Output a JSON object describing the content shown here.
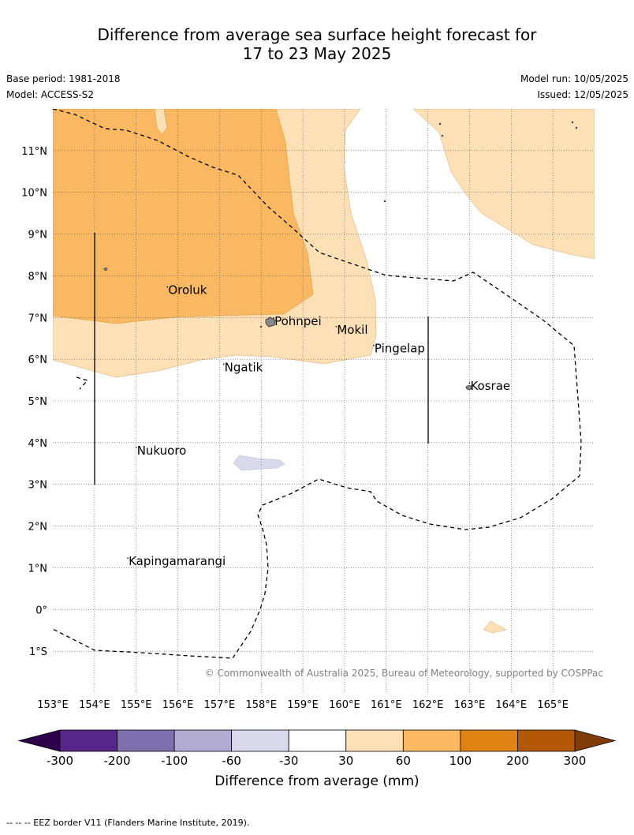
{
  "title_line1": "Difference from average sea surface height forecast for",
  "title_line2": "17 to 23 May 2025",
  "base_period": "Base period: 1981-2018",
  "model": "Model: ACCESS-S2",
  "model_run": "Model run: 10/05/2025",
  "issued": "Issued: 12/05/2025",
  "map": {
    "lon_range": [
      153,
      166
    ],
    "lat_range": [
      -2,
      12
    ],
    "lon_ticks": [
      "153°E",
      "154°E",
      "155°E",
      "156°E",
      "157°E",
      "158°E",
      "159°E",
      "160°E",
      "161°E",
      "162°E",
      "163°E",
      "164°E",
      "165°E"
    ],
    "lat_ticks": [
      "11°N",
      "10°N",
      "9°N",
      "8°N",
      "7°N",
      "6°N",
      "5°N",
      "4°N",
      "3°N",
      "2°N",
      "1°N",
      "0°",
      "1°S"
    ],
    "places": [
      {
        "name": "Oroluk",
        "lon": 155.75,
        "lat": 7.6
      },
      {
        "name": "Pohnpei",
        "lon": 158.3,
        "lat": 6.85
      },
      {
        "name": "Mokil",
        "lon": 159.8,
        "lat": 6.65
      },
      {
        "name": "Pingelap",
        "lon": 160.7,
        "lat": 6.2
      },
      {
        "name": "Ngatik",
        "lon": 157.1,
        "lat": 5.75
      },
      {
        "name": "Kosrae",
        "lon": 163.0,
        "lat": 5.3
      },
      {
        "name": "Nukuoro",
        "lon": 155.0,
        "lat": 3.75
      },
      {
        "name": "Kapingamarangi",
        "lon": 154.8,
        "lat": 1.1
      }
    ],
    "copyright": "© Commonwealth of Australia 2025, Bureau of Meteorology, supported by COSPPac"
  },
  "colorbar": {
    "labels": [
      "-300",
      "-200",
      "-100",
      "-60",
      "-30",
      "30",
      "60",
      "100",
      "200",
      "300"
    ],
    "colors": [
      "#56268a",
      "#7e70ae",
      "#b2abd2",
      "#d8daeb",
      "#ffffff",
      "#fee0b6",
      "#fab863",
      "#e08214",
      "#b35806"
    ],
    "under_color": "#2d004b",
    "over_color": "#7f3b08",
    "label": "Difference from average (mm)"
  },
  "footer": "--  --  -- EEZ border V11 (Flanders Marine Institute, 2019)."
}
